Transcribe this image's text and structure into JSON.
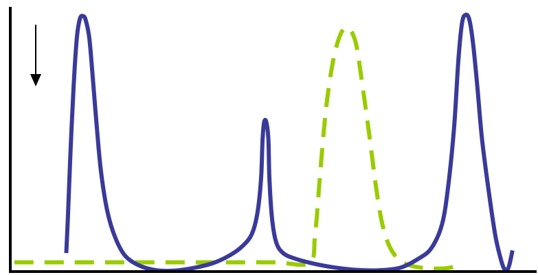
{
  "chart_data": {
    "type": "line",
    "title": "",
    "xlabel": "",
    "ylabel": "",
    "xlim": [
      0,
      100
    ],
    "ylim": [
      0,
      100
    ],
    "grid": false,
    "legend": "none",
    "annotations": [
      {
        "type": "arrow",
        "direction": "down",
        "icon": "down-arrow-icon",
        "color": "#000000"
      }
    ],
    "series": [
      {
        "style": "solid",
        "color": "#3a3a9a",
        "points": [
          [
            10.4,
            7
          ],
          [
            10.7,
            20
          ],
          [
            11.2,
            45
          ],
          [
            11.8,
            70
          ],
          [
            12.4,
            88
          ],
          [
            13.0,
            95.5
          ],
          [
            13.6,
            96.5
          ],
          [
            14.1,
            95
          ],
          [
            14.8,
            88
          ],
          [
            15.5,
            72
          ],
          [
            16.2,
            55
          ],
          [
            17.0,
            38
          ],
          [
            18.2,
            23
          ],
          [
            19.7,
            13
          ],
          [
            21.6,
            6
          ],
          [
            24.3,
            2.3
          ],
          [
            27.6,
            0.5
          ],
          [
            31.3,
            0.4
          ],
          [
            35.0,
            1.5
          ],
          [
            38.5,
            3.3
          ],
          [
            41.6,
            6.2
          ],
          [
            43.9,
            9.5
          ],
          [
            45.7,
            14
          ],
          [
            46.8,
            22
          ],
          [
            47.5,
            35
          ],
          [
            47.8,
            50
          ],
          [
            48.1,
            56.5
          ],
          [
            48.5,
            56.5
          ],
          [
            48.9,
            50
          ],
          [
            49.1,
            35
          ],
          [
            49.6,
            20
          ],
          [
            50.4,
            11
          ],
          [
            51.7,
            7
          ],
          [
            53.8,
            5
          ],
          [
            57.1,
            3.2
          ],
          [
            61.3,
            1.6
          ],
          [
            65.9,
            0.6
          ],
          [
            70.0,
            0.5
          ],
          [
            74.1,
            1.5
          ],
          [
            77.6,
            5
          ],
          [
            80.0,
            9
          ],
          [
            82.0,
            18
          ],
          [
            83.2,
            33
          ],
          [
            84.3,
            55
          ],
          [
            85.1,
            80
          ],
          [
            85.8,
            94
          ],
          [
            86.5,
            97
          ],
          [
            87.2,
            95
          ],
          [
            87.9,
            86
          ],
          [
            88.7,
            70
          ],
          [
            89.6,
            50
          ],
          [
            90.9,
            30
          ],
          [
            92.1,
            14
          ],
          [
            93.0,
            6
          ],
          [
            93.7,
            1.5
          ],
          [
            94.3,
            0.5
          ],
          [
            94.8,
            2.5
          ],
          [
            95.4,
            8
          ]
        ]
      },
      {
        "style": "dashed",
        "color": "#99cc00",
        "points": [
          [
            0.5,
            3.5
          ],
          [
            10.0,
            3.5
          ],
          [
            20.0,
            3.5
          ],
          [
            30.0,
            3.5
          ],
          [
            40.0,
            3.5
          ],
          [
            50.0,
            3.5
          ],
          [
            56.7,
            3.3
          ],
          [
            57.8,
            14
          ],
          [
            58.8,
            38
          ],
          [
            59.8,
            60
          ],
          [
            60.9,
            76
          ],
          [
            62.0,
            86
          ],
          [
            63.2,
            91.5
          ],
          [
            64.4,
            91.5
          ],
          [
            65.6,
            86
          ],
          [
            66.7,
            72
          ],
          [
            68.1,
            52
          ],
          [
            69.4,
            32
          ],
          [
            70.6,
            18
          ],
          [
            72.1,
            9
          ],
          [
            74.1,
            4
          ],
          [
            76.5,
            2
          ],
          [
            79.5,
            1.2
          ],
          [
            82.5,
            1.2
          ],
          [
            84.6,
            2
          ]
        ]
      }
    ]
  }
}
